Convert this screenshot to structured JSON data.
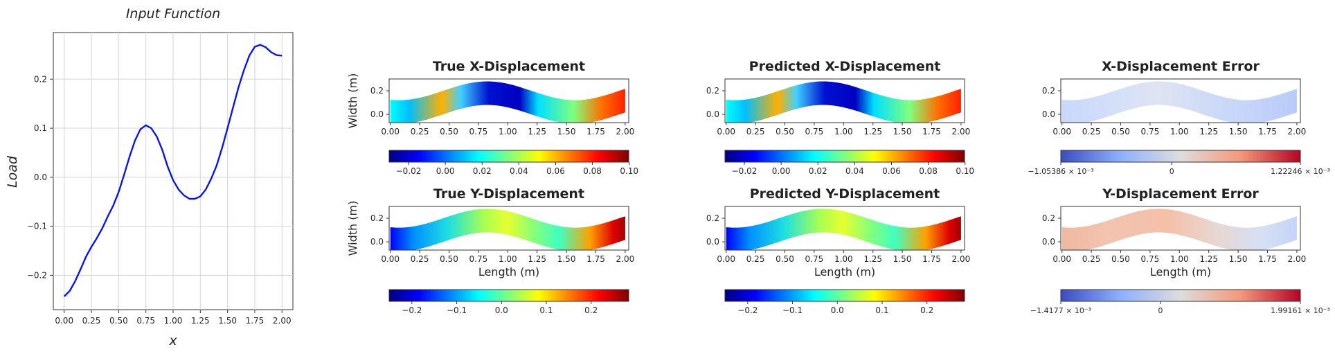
{
  "colors": {
    "input_line": "#0a14e6",
    "jet": [
      "#00007f",
      "#0000ff",
      "#007fff",
      "#00ffff",
      "#7fff7f",
      "#ffff00",
      "#ff7f00",
      "#ff0000",
      "#7f0000"
    ],
    "coolwarm": [
      "#3b4cc0",
      "#8db0fe",
      "#dddddd",
      "#f4987a",
      "#b40426"
    ]
  },
  "chart_data": [
    {
      "type": "line",
      "title": "Input Function",
      "xlabel": "x",
      "ylabel": "Load",
      "xlim": [
        -0.1,
        2.1
      ],
      "ylim": [
        -0.27,
        0.295
      ],
      "xticks": [
        "0.00",
        "0.25",
        "0.50",
        "0.75",
        "1.00",
        "1.25",
        "1.50",
        "1.75",
        "2.00"
      ],
      "yticks": [
        "−0.2",
        "−0.1",
        "0.0",
        "0.1",
        "0.2"
      ],
      "grid": true,
      "series": [
        {
          "x": [
            0.0,
            0.05,
            0.1,
            0.15,
            0.2,
            0.25,
            0.3,
            0.35,
            0.4,
            0.45,
            0.5,
            0.55,
            0.6,
            0.65,
            0.7,
            0.75,
            0.8,
            0.85,
            0.9,
            0.95,
            1.0,
            1.05,
            1.1,
            1.15,
            1.2,
            1.25,
            1.3,
            1.35,
            1.4,
            1.45,
            1.5,
            1.55,
            1.6,
            1.65,
            1.7,
            1.75,
            1.8,
            1.85,
            1.9,
            1.95,
            2.0
          ],
          "y": [
            -0.243,
            -0.232,
            -0.212,
            -0.188,
            -0.162,
            -0.142,
            -0.124,
            -0.104,
            -0.08,
            -0.058,
            -0.03,
            0.005,
            0.042,
            0.075,
            0.098,
            0.106,
            0.1,
            0.083,
            0.056,
            0.022,
            -0.006,
            -0.025,
            -0.037,
            -0.044,
            -0.044,
            -0.039,
            -0.025,
            -0.003,
            0.024,
            0.06,
            0.1,
            0.142,
            0.183,
            0.218,
            0.248,
            0.266,
            0.27,
            0.265,
            0.255,
            0.249,
            0.248
          ]
        }
      ]
    },
    {
      "type": "heatmap",
      "title": "True X-Displacement",
      "ylabel": "Width (m)",
      "xlabel": "",
      "xticks": [
        "0.00",
        "0.25",
        "0.50",
        "0.75",
        "1.00",
        "1.25",
        "1.50",
        "1.75",
        "2.00"
      ],
      "yticks": [
        "0.0",
        "0.2"
      ],
      "colormap": "jet",
      "colorbar_ticks": [
        "−0.02",
        "0.00",
        "0.02",
        "0.04",
        "0.06",
        "0.08",
        "0.10"
      ]
    },
    {
      "type": "heatmap",
      "title": "Predicted X-Displacement",
      "xlabel": "",
      "xticks": [
        "0.00",
        "0.25",
        "0.50",
        "0.75",
        "1.00",
        "1.25",
        "1.50",
        "1.75",
        "2.00"
      ],
      "yticks": [
        "0.0",
        "0.2"
      ],
      "colormap": "jet",
      "colorbar_ticks": [
        "−0.02",
        "0.00",
        "0.02",
        "0.04",
        "0.06",
        "0.08",
        "0.10"
      ]
    },
    {
      "type": "heatmap",
      "title": "X-Displacement Error",
      "xlabel": "",
      "xticks": [
        "0.00",
        "0.25",
        "0.50",
        "0.75",
        "1.00",
        "1.25",
        "1.50",
        "1.75",
        "2.00"
      ],
      "yticks": [
        "0.0",
        "0.2"
      ],
      "colormap": "coolwarm",
      "colorbar_ticks": [
        "−1.05386 × 10⁻³",
        "0",
        "1.22246 × 10⁻³"
      ]
    },
    {
      "type": "heatmap",
      "title": "True Y-Displacement",
      "ylabel": "Width (m)",
      "xlabel": "Length (m)",
      "xticks": [
        "0.00",
        "0.25",
        "0.50",
        "0.75",
        "1.00",
        "1.25",
        "1.50",
        "1.75",
        "2.00"
      ],
      "yticks": [
        "0.0",
        "0.2"
      ],
      "colormap": "jet",
      "colorbar_ticks": [
        "−0.2",
        "−0.1",
        "0.0",
        "0.1",
        "0.2"
      ]
    },
    {
      "type": "heatmap",
      "title": "Predicted Y-Displacement",
      "xlabel": "Length (m)",
      "xticks": [
        "0.00",
        "0.25",
        "0.50",
        "0.75",
        "1.00",
        "1.25",
        "1.50",
        "1.75",
        "2.00"
      ],
      "yticks": [
        "0.0",
        "0.2"
      ],
      "colormap": "jet",
      "colorbar_ticks": [
        "−0.2",
        "−0.1",
        "0.0",
        "0.1",
        "0.2"
      ]
    },
    {
      "type": "heatmap",
      "title": "Y-Displacement Error",
      "xlabel": "Length (m)",
      "xticks": [
        "0.00",
        "0.25",
        "0.50",
        "0.75",
        "1.00",
        "1.25",
        "1.50",
        "1.75",
        "2.00"
      ],
      "yticks": [
        "0.0",
        "0.2"
      ],
      "colormap": "coolwarm",
      "colorbar_ticks": [
        "−1.4177 × 10⁻³",
        "0",
        "1.99161 × 10⁻³"
      ]
    }
  ]
}
